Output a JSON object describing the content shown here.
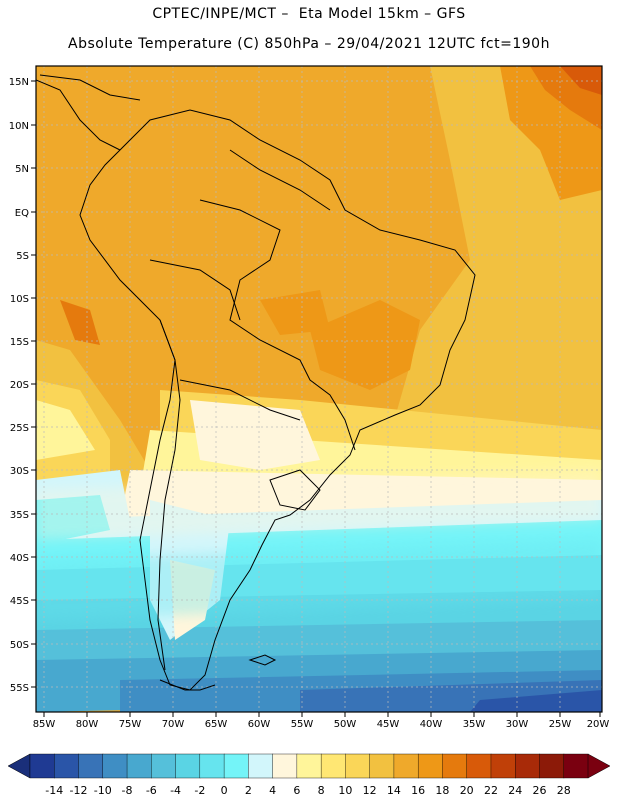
{
  "header": {
    "line1": "CPTEC/INPE/MCT –  Eta Model 15km – GFS",
    "line2": "Absolute Temperature (C) 850hPa – 29/04/2021 12UTC fct=190h"
  },
  "map": {
    "lat_labels": [
      "15N",
      "10N",
      "5N",
      "EQ",
      "5S",
      "10S",
      "15S",
      "20S",
      "25S",
      "30S",
      "35S",
      "40S",
      "45S",
      "50S",
      "55S"
    ],
    "lon_labels": [
      "85W",
      "80W",
      "75W",
      "70W",
      "65W",
      "60W",
      "55W",
      "50W",
      "45W",
      "40W",
      "35W",
      "30W",
      "25W",
      "20W"
    ]
  },
  "colorbar": {
    "labels": [
      "-14",
      "-12",
      "-10",
      "-8",
      "-6",
      "-4",
      "-2",
      "0",
      "2",
      "4",
      "6",
      "8",
      "10",
      "12",
      "14",
      "16",
      "18",
      "20",
      "22",
      "24",
      "26",
      "28"
    ],
    "colors": [
      "#1f3a93",
      "#2a55a8",
      "#3873b7",
      "#3f8ec4",
      "#48a8cf",
      "#55c0da",
      "#5ad4e4",
      "#66e4ee",
      "#74f4f8",
      "#d2f6fb",
      "#fff6dc",
      "#fff59a",
      "#ffe773",
      "#fad658",
      "#f2c140",
      "#efa92b",
      "#ee9817",
      "#e57a0d",
      "#d85a09",
      "#c04008",
      "#a82a08",
      "#8c1a08",
      "#7a0010"
    ],
    "low_arrow_color": "#1a2f7a",
    "high_arrow_color": "#7a0010"
  }
}
